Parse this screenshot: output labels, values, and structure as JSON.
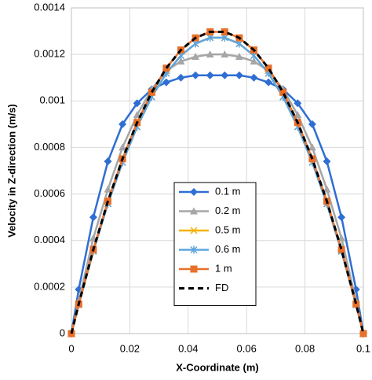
{
  "chart_data": {
    "type": "line",
    "xlabel": "X-Coordinate (m)",
    "ylabel": "Velocity in Z-direction (m/s)",
    "x": [
      0,
      0.0025,
      0.0075,
      0.0125,
      0.0175,
      0.0225,
      0.0275,
      0.0325,
      0.0375,
      0.0425,
      0.0475,
      0.0525,
      0.0575,
      0.0625,
      0.0675,
      0.0725,
      0.0775,
      0.0825,
      0.0875,
      0.0925,
      0.0975,
      0.1
    ],
    "xlim": [
      0,
      0.1
    ],
    "xticks": [
      0,
      0.02,
      0.04,
      0.06,
      0.08,
      0.1
    ],
    "ylim": [
      0,
      0.0014
    ],
    "yticks": [
      0,
      0.0002,
      0.0004,
      0.0006,
      0.0008,
      0.001,
      0.0012,
      0.0014
    ],
    "grid": true,
    "series": [
      {
        "name": "0.1 m",
        "color": "#2f6ed3",
        "marker": "diamond",
        "values": [
          0,
          0.00019,
          0.0005,
          0.00074,
          0.0009,
          0.00099,
          0.00105,
          0.00108,
          0.0011,
          0.00111,
          0.00111,
          0.00111,
          0.00111,
          0.0011,
          0.00108,
          0.00105,
          0.00099,
          0.0009,
          0.00074,
          0.0005,
          0.00019,
          0
        ]
      },
      {
        "name": "0.2 m",
        "color": "#a6a6a6",
        "marker": "triangle",
        "values": [
          0,
          0.00014,
          0.00041,
          0.00062,
          0.0008,
          0.00094,
          0.00105,
          0.00113,
          0.00117,
          0.00119,
          0.0012,
          0.0012,
          0.00119,
          0.00117,
          0.00113,
          0.00105,
          0.00094,
          0.0008,
          0.00062,
          0.00041,
          0.00014,
          0
        ]
      },
      {
        "name": "0.5 m",
        "color": "#f2b200",
        "marker": "x",
        "values": [
          0,
          0.000124,
          0.000354,
          0.000558,
          0.000736,
          0.000889,
          0.001017,
          0.001119,
          0.001195,
          0.001246,
          0.001272,
          0.001272,
          0.001246,
          0.001195,
          0.001119,
          0.001017,
          0.000889,
          0.000736,
          0.000558,
          0.000354,
          0.000124,
          0
        ]
      },
      {
        "name": "0.6 m",
        "color": "#5fa5df",
        "marker": "asterisk",
        "values": [
          0,
          0.000124,
          0.000354,
          0.000558,
          0.000736,
          0.000889,
          0.001017,
          0.001119,
          0.001195,
          0.001246,
          0.001272,
          0.001272,
          0.001246,
          0.001195,
          0.001119,
          0.001017,
          0.000889,
          0.000736,
          0.000558,
          0.000354,
          0.000124,
          0
        ]
      },
      {
        "name": "1 m",
        "color": "#e8702a",
        "marker": "square",
        "values": [
          0,
          0.000127,
          0.000361,
          0.000569,
          0.000751,
          0.000907,
          0.001037,
          0.001141,
          0.001219,
          0.001271,
          0.001297,
          0.001297,
          0.001271,
          0.001219,
          0.001141,
          0.001037,
          0.000907,
          0.000751,
          0.000569,
          0.000361,
          0.000127,
          0
        ]
      },
      {
        "name": "FD",
        "color": "#000000",
        "marker": "none",
        "dashed": true,
        "values": [
          0,
          0.000127,
          0.000361,
          0.000569,
          0.000751,
          0.000907,
          0.001037,
          0.001141,
          0.001219,
          0.001271,
          0.001297,
          0.001297,
          0.001271,
          0.001219,
          0.001141,
          0.001037,
          0.000907,
          0.000751,
          0.000569,
          0.000361,
          0.000127,
          0
        ]
      }
    ]
  }
}
